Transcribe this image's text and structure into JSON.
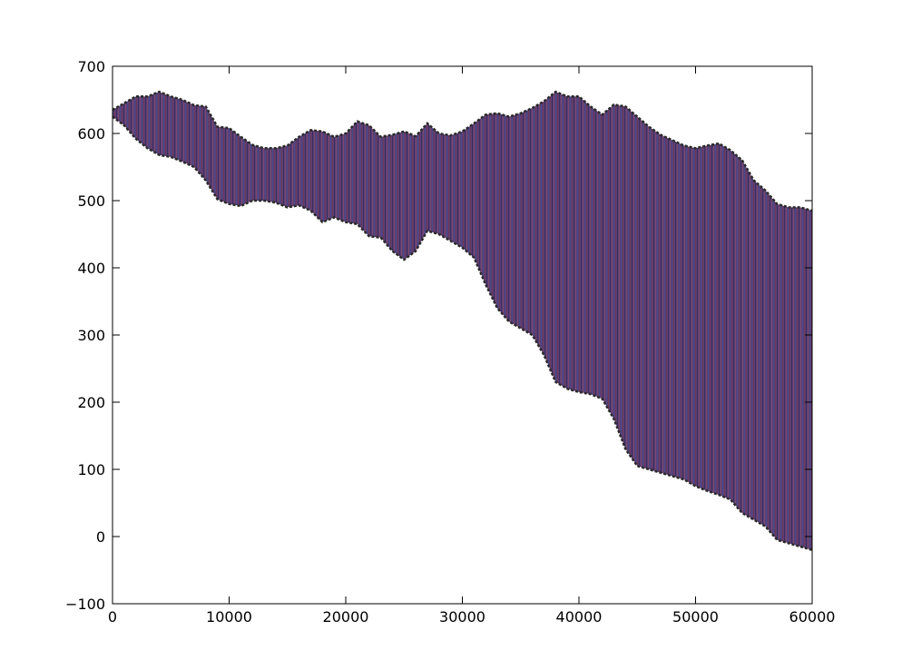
{
  "chart_data": {
    "type": "area",
    "title": "",
    "xlabel": "",
    "ylabel": "",
    "xlim": [
      0,
      60000
    ],
    "ylim": [
      -100,
      700
    ],
    "grid": false,
    "legend": "none",
    "x_ticks": [
      0,
      10000,
      20000,
      30000,
      40000,
      50000,
      60000
    ],
    "y_ticks": [
      -100,
      0,
      100,
      200,
      300,
      400,
      500,
      600,
      700
    ],
    "x_tick_labels": [
      "0",
      "10000",
      "20000",
      "30000",
      "40000",
      "50000",
      "60000"
    ],
    "y_tick_labels": [
      "−100",
      "0",
      "100",
      "200",
      "300",
      "400",
      "500",
      "600",
      "700"
    ],
    "fill_color": "#5a3f78",
    "band": {
      "x": [
        0,
        1000,
        2000,
        3000,
        4000,
        5000,
        6000,
        7000,
        8000,
        9000,
        10000,
        11000,
        12000,
        13000,
        14000,
        15000,
        16000,
        17000,
        18000,
        19000,
        20000,
        21000,
        22000,
        23000,
        24000,
        25000,
        26000,
        27000,
        28000,
        29000,
        30000,
        31000,
        32000,
        33000,
        34000,
        35000,
        36000,
        37000,
        38000,
        39000,
        40000,
        41000,
        42000,
        43000,
        44000,
        45000,
        46000,
        47000,
        48000,
        49000,
        50000,
        51000,
        52000,
        53000,
        54000,
        55000,
        56000,
        57000,
        58000,
        59000,
        60000
      ],
      "upper": [
        635,
        645,
        655,
        655,
        662,
        655,
        650,
        642,
        640,
        610,
        608,
        595,
        583,
        578,
        578,
        582,
        595,
        605,
        603,
        595,
        600,
        618,
        612,
        595,
        598,
        603,
        596,
        615,
        600,
        597,
        603,
        615,
        628,
        630,
        625,
        630,
        638,
        648,
        662,
        655,
        655,
        640,
        628,
        643,
        640,
        625,
        610,
        598,
        590,
        582,
        578,
        582,
        585,
        575,
        560,
        530,
        515,
        495,
        490,
        490,
        485
      ],
      "lower": [
        625,
        612,
        592,
        578,
        568,
        565,
        558,
        550,
        530,
        502,
        495,
        492,
        500,
        500,
        497,
        490,
        493,
        485,
        468,
        475,
        468,
        465,
        447,
        445,
        425,
        412,
        425,
        455,
        450,
        440,
        430,
        415,
        375,
        340,
        320,
        310,
        300,
        270,
        230,
        220,
        215,
        212,
        205,
        175,
        130,
        105,
        100,
        95,
        90,
        85,
        75,
        68,
        62,
        55,
        35,
        25,
        15,
        -5,
        -10,
        -15,
        -20
      ]
    }
  }
}
